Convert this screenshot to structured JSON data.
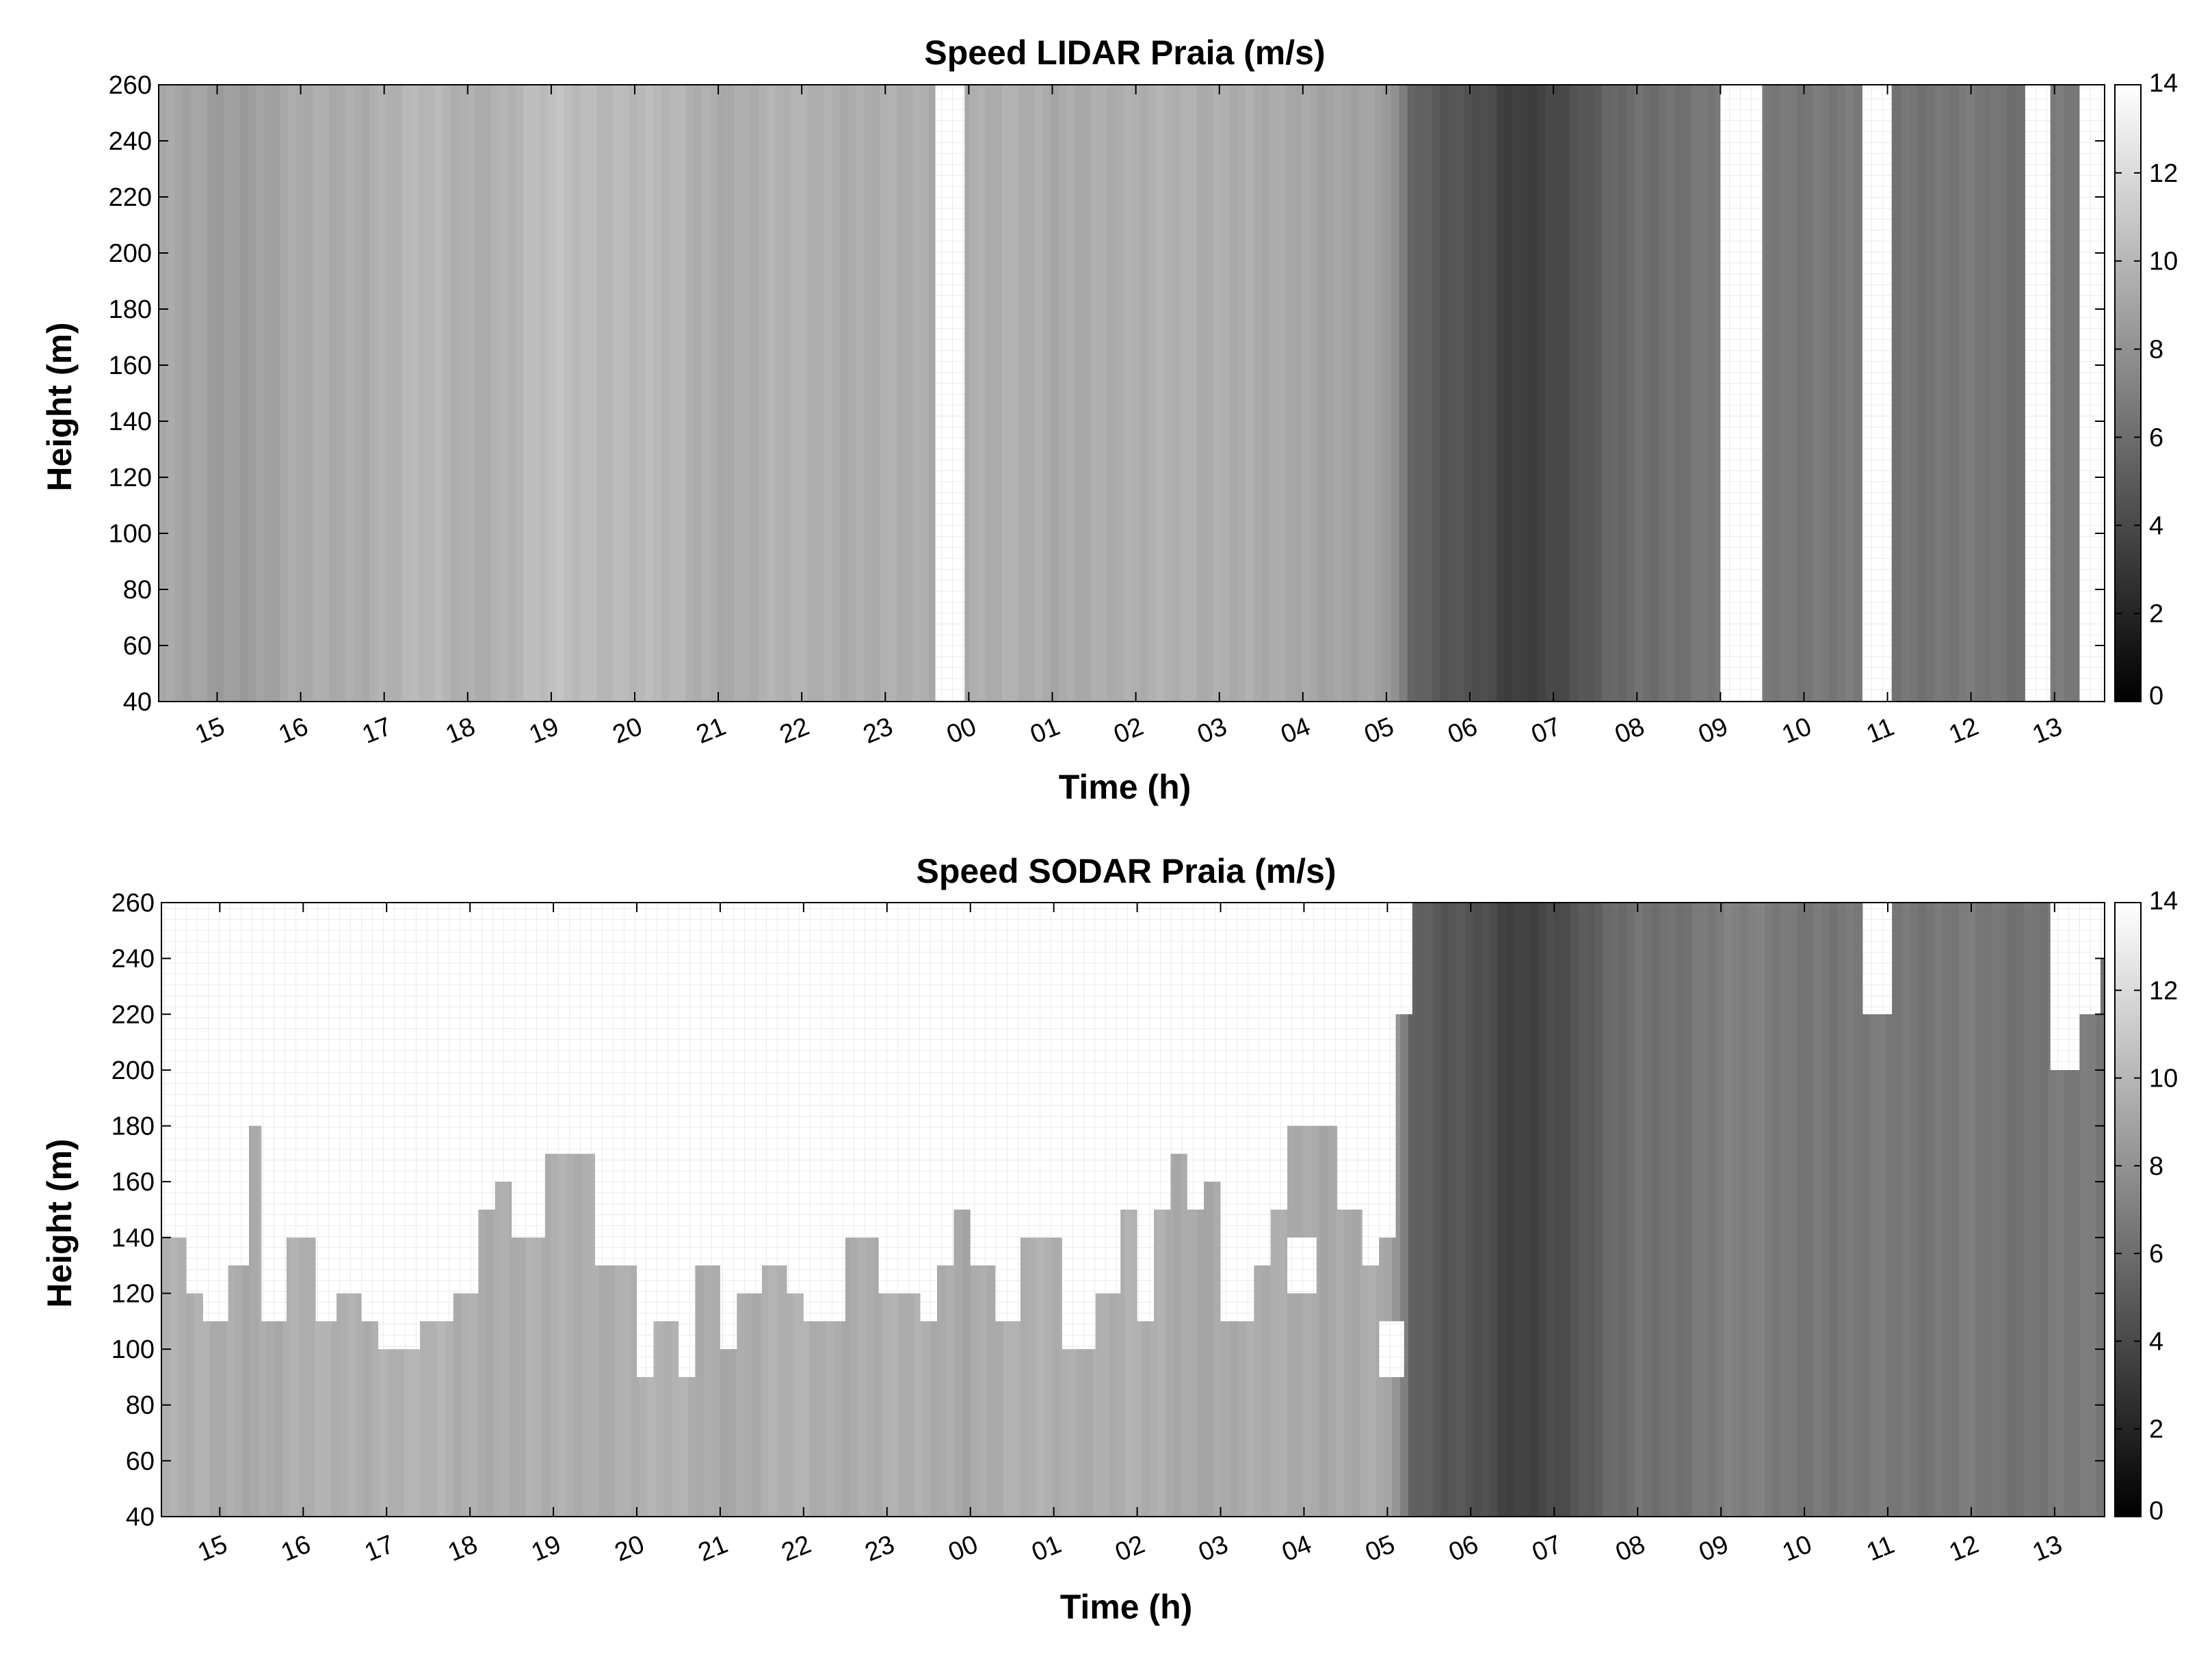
{
  "chart_data": [
    {
      "type": "heatmap",
      "title": "Speed LIDAR Praia (m/s)",
      "xlabel": "Time (h)",
      "ylabel": "Height (m)",
      "x_ticks": [
        "15",
        "16",
        "17",
        "18",
        "19",
        "20",
        "21",
        "22",
        "23",
        "00",
        "01",
        "02",
        "03",
        "04",
        "05",
        "06",
        "07",
        "08",
        "09",
        "10",
        "11",
        "12",
        "13"
      ],
      "y_ticks": [
        40,
        60,
        80,
        100,
        120,
        140,
        160,
        180,
        200,
        220,
        240,
        260
      ],
      "ylim": [
        40,
        260
      ],
      "colorbar": {
        "range": [
          0,
          14
        ],
        "ticks": [
          0,
          2,
          4,
          6,
          8,
          10,
          12,
          14
        ],
        "colormap": "gray"
      },
      "time_start_hour": 14.3,
      "time_end_hour": 37.6,
      "missing_intervals_hours": [
        [
          23.6,
          23.95
        ],
        [
          33.0,
          33.5
        ],
        [
          34.7,
          35.05
        ],
        [
          36.65,
          36.95
        ],
        [
          37.3,
          37.6
        ]
      ],
      "speed_profile": {
        "hours": [
          14.3,
          15.0,
          15.5,
          16.0,
          16.5,
          17.0,
          17.5,
          18.0,
          18.5,
          19.0,
          19.5,
          20.0,
          20.5,
          21.0,
          21.5,
          22.0,
          22.5,
          23.0,
          23.5,
          24.0,
          24.5,
          25.0,
          25.5,
          26.0,
          26.5,
          27.0,
          27.5,
          28.0,
          28.5,
          29.0,
          29.3,
          29.6,
          30.0,
          30.5,
          31.0,
          31.5,
          32.0,
          32.5,
          33.0,
          33.5,
          34.0,
          34.5,
          35.0,
          35.5,
          36.0,
          36.5,
          37.0,
          37.6
        ],
        "speed_ms": [
          9.2,
          8.6,
          8.9,
          9.3,
          9.4,
          9.8,
          10.0,
          9.6,
          9.9,
          10.4,
          10.3,
          10.2,
          9.8,
          9.5,
          9.6,
          9.7,
          9.6,
          9.5,
          9.4,
          9.6,
          9.5,
          9.3,
          9.6,
          9.4,
          9.8,
          9.6,
          9.2,
          9.3,
          9.0,
          8.6,
          5.8,
          5.0,
          4.5,
          3.2,
          4.0,
          5.0,
          6.0,
          6.4,
          6.6,
          6.8,
          6.7,
          6.5,
          6.6,
          6.4,
          6.5,
          6.3,
          6.7,
          6.5
        ]
      }
    },
    {
      "type": "heatmap",
      "title": "Speed SODAR Praia (m/s)",
      "xlabel": "Time (h)",
      "ylabel": "Height (m)",
      "x_ticks": [
        "15",
        "16",
        "17",
        "18",
        "19",
        "20",
        "21",
        "22",
        "23",
        "00",
        "01",
        "02",
        "03",
        "04",
        "05",
        "06",
        "07",
        "08",
        "09",
        "10",
        "11",
        "12",
        "13"
      ],
      "y_ticks": [
        40,
        60,
        80,
        100,
        120,
        140,
        160,
        180,
        200,
        220,
        240,
        260
      ],
      "ylim": [
        40,
        260
      ],
      "colorbar": {
        "range": [
          0,
          14
        ],
        "ticks": [
          0,
          2,
          4,
          6,
          8,
          10,
          12,
          14
        ],
        "colormap": "gray"
      },
      "time_start_hour": 14.3,
      "time_end_hour": 37.6,
      "max_height_profile": {
        "hours": [
          14.3,
          14.6,
          14.8,
          15.1,
          15.35,
          15.5,
          15.8,
          16.15,
          16.4,
          16.7,
          16.9,
          17.4,
          17.8,
          18.1,
          18.3,
          18.5,
          18.7,
          18.9,
          19.5,
          20.0,
          20.2,
          20.5,
          20.7,
          21.0,
          21.2,
          21.5,
          21.8,
          22.0,
          22.3,
          22.5,
          22.9,
          23.1,
          23.4,
          23.6,
          23.8,
          24.0,
          24.3,
          24.6,
          25.1,
          25.5,
          25.8,
          26.0,
          26.2,
          26.4,
          26.6,
          26.8,
          27.0,
          27.4,
          27.6,
          27.8,
          28.0,
          28.4,
          28.7,
          28.9,
          29.1,
          29.3
        ],
        "height_m": [
          140,
          120,
          110,
          130,
          180,
          110,
          140,
          110,
          120,
          110,
          100,
          110,
          120,
          150,
          160,
          140,
          140,
          170,
          130,
          90,
          110,
          90,
          130,
          100,
          120,
          130,
          120,
          110,
          110,
          140,
          120,
          120,
          110,
          130,
          150,
          130,
          110,
          140,
          100,
          120,
          150,
          110,
          150,
          170,
          150,
          160,
          110,
          130,
          150,
          180,
          180,
          150,
          130,
          140,
          220,
          260
        ],
        "missing_after_hour": 29.3
      },
      "missing_intervals_after_29h": [
        [
          34.7,
          35.05,
          220
        ],
        [
          36.95,
          37.3,
          200
        ],
        [
          37.3,
          37.55,
          220
        ],
        [
          37.55,
          37.6,
          240
        ]
      ],
      "speed_profile": {
        "hours": [
          14.3,
          15.0,
          16.0,
          17.0,
          18.0,
          19.0,
          20.0,
          21.0,
          22.0,
          23.0,
          24.0,
          25.0,
          26.0,
          27.0,
          28.0,
          29.0,
          29.3,
          29.6,
          30.0,
          30.5,
          31.0,
          31.5,
          32.0,
          32.5,
          33.0,
          33.5,
          34.0,
          34.5,
          35.0,
          35.5,
          36.0,
          36.5,
          37.0,
          37.6
        ],
        "speed_ms": [
          9.6,
          9.4,
          9.5,
          9.8,
          9.6,
          9.5,
          9.7,
          9.4,
          9.6,
          9.5,
          9.4,
          9.6,
          9.5,
          9.3,
          9.4,
          9.2,
          5.6,
          5.0,
          4.6,
          3.3,
          4.2,
          5.2,
          6.2,
          6.4,
          6.8,
          7.0,
          6.6,
          6.4,
          6.8,
          6.5,
          6.6,
          6.4,
          6.7,
          6.5
        ]
      }
    }
  ]
}
